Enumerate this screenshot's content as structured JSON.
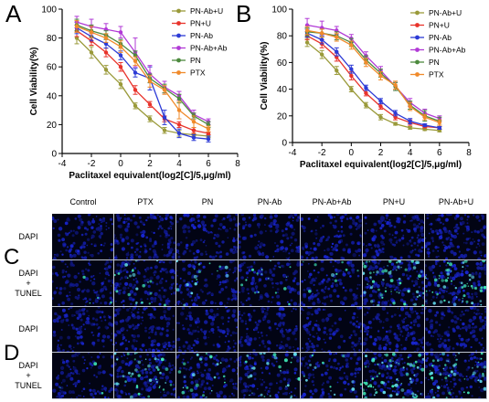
{
  "panels": {
    "a": "A",
    "b": "B",
    "c": "C",
    "d": "D"
  },
  "colors": {
    "PN-Ab+U": "#9a9a3a",
    "PN+U": "#e8332b",
    "PN-Ab": "#2d3bd6",
    "PN-Ab+Ab": "#b13ad6",
    "PN": "#4d8a3e",
    "PTX": "#f08a2a"
  },
  "chart_data": [
    {
      "type": "line",
      "panel": "A",
      "xlabel": "Paclitaxel equivalent(log2[C]/5,μg/ml)",
      "ylabel": "Cell Viability(%)",
      "xlim": [
        -4,
        8
      ],
      "ylim": [
        0,
        100
      ],
      "xticks": [
        "-4",
        "-2",
        "0",
        "2",
        "4",
        "6",
        "8"
      ],
      "yticks": [
        "0",
        "20",
        "40",
        "60",
        "80",
        "100"
      ],
      "legend_position": "top-right",
      "x": [
        -3,
        -2,
        -1,
        0,
        1,
        2,
        3,
        4,
        5,
        6
      ],
      "series": [
        {
          "name": "PN-Ab+U",
          "values": [
            80,
            70,
            58,
            48,
            33,
            24,
            16,
            14,
            13,
            12
          ],
          "err": [
            4,
            4,
            3,
            3,
            2,
            2,
            2,
            2,
            1,
            1
          ]
        },
        {
          "name": "PN+U",
          "values": [
            85,
            78,
            70,
            60,
            44,
            34,
            24,
            20,
            16,
            14
          ],
          "err": [
            4,
            3,
            3,
            3,
            3,
            2,
            2,
            2,
            2,
            1
          ]
        },
        {
          "name": "PN-Ab",
          "values": [
            87,
            81,
            76,
            68,
            56,
            52,
            25,
            14,
            11,
            10
          ],
          "err": [
            4,
            3,
            3,
            3,
            3,
            8,
            5,
            3,
            2,
            2
          ]
        },
        {
          "name": "PN-Ab+Ab",
          "values": [
            91,
            88,
            86,
            84,
            70,
            55,
            46,
            40,
            27,
            22
          ],
          "err": [
            4,
            5,
            4,
            4,
            10,
            6,
            4,
            3,
            3,
            2
          ]
        },
        {
          "name": "PN",
          "values": [
            89,
            85,
            82,
            76,
            68,
            52,
            45,
            38,
            26,
            20
          ],
          "err": [
            4,
            4,
            3,
            3,
            3,
            3,
            3,
            3,
            2,
            2
          ]
        },
        {
          "name": "PTX",
          "values": [
            88,
            84,
            80,
            74,
            64,
            50,
            44,
            30,
            22,
            17
          ],
          "err": [
            4,
            4,
            3,
            4,
            3,
            4,
            3,
            6,
            4,
            2
          ]
        }
      ]
    },
    {
      "type": "line",
      "panel": "B",
      "xlabel": "Paclitaxel equivalent(log2[C]/5,μg/ml)",
      "ylabel": "Cell Viability(%)",
      "xlim": [
        -4,
        8
      ],
      "ylim": [
        0,
        100
      ],
      "xticks": [
        "-4",
        "-2",
        "0",
        "2",
        "4",
        "6",
        "8"
      ],
      "yticks": [
        "0",
        "20",
        "40",
        "60",
        "80",
        "100"
      ],
      "legend_position": "top-right",
      "x": [
        -3,
        -2,
        -1,
        0,
        1,
        2,
        3,
        4,
        5,
        6
      ],
      "series": [
        {
          "name": "PN-Ab+U",
          "values": [
            75,
            66,
            54,
            40,
            28,
            19,
            14,
            11,
            10,
            9
          ],
          "err": [
            3,
            3,
            3,
            2,
            2,
            2,
            1,
            1,
            1,
            1
          ]
        },
        {
          "name": "PN+U",
          "values": [
            80,
            74,
            64,
            50,
            37,
            27,
            19,
            15,
            12,
            11
          ],
          "err": [
            3,
            3,
            3,
            3,
            2,
            2,
            2,
            2,
            1,
            1
          ]
        },
        {
          "name": "PN-Ab",
          "values": [
            82,
            77,
            68,
            55,
            41,
            31,
            22,
            16,
            13,
            11
          ],
          "err": [
            3,
            3,
            3,
            3,
            2,
            2,
            2,
            2,
            1,
            1
          ]
        },
        {
          "name": "PN-Ab+Ab",
          "values": [
            88,
            86,
            84,
            78,
            65,
            54,
            42,
            30,
            22,
            18
          ],
          "err": [
            5,
            5,
            3,
            3,
            3,
            3,
            3,
            3,
            3,
            2
          ]
        },
        {
          "name": "PN",
          "values": [
            83,
            82,
            80,
            75,
            62,
            52,
            42,
            28,
            20,
            16
          ],
          "err": [
            3,
            3,
            3,
            3,
            3,
            3,
            3,
            3,
            4,
            3
          ]
        },
        {
          "name": "PTX",
          "values": [
            84,
            82,
            79,
            73,
            60,
            50,
            43,
            27,
            19,
            15
          ],
          "err": [
            3,
            3,
            3,
            3,
            3,
            3,
            3,
            3,
            2,
            2
          ]
        }
      ]
    }
  ],
  "microscopy": {
    "columns": [
      "Control",
      "PTX",
      "PN",
      "PN-Ab",
      "PN-Ab+Ab",
      "PN+U",
      "PN-Ab+U"
    ],
    "rows": [
      {
        "panel": "C",
        "label_lines": [
          "DAPI"
        ],
        "tunel": [
          0,
          0,
          0,
          0,
          0,
          0,
          0
        ]
      },
      {
        "panel": "C",
        "label_lines": [
          "DAPI",
          "+",
          "TUNEL"
        ],
        "tunel": [
          0.05,
          0.25,
          0.18,
          0.18,
          0.1,
          0.7,
          0.6
        ]
      },
      {
        "panel": "D",
        "label_lines": [
          "DAPI"
        ],
        "tunel": [
          0,
          0,
          0,
          0,
          0,
          0,
          0
        ]
      },
      {
        "panel": "D",
        "label_lines": [
          "DAPI",
          "+",
          "TUNEL"
        ],
        "tunel": [
          0.04,
          0.45,
          0.25,
          0.3,
          0.15,
          0.75,
          0.5
        ]
      }
    ]
  }
}
